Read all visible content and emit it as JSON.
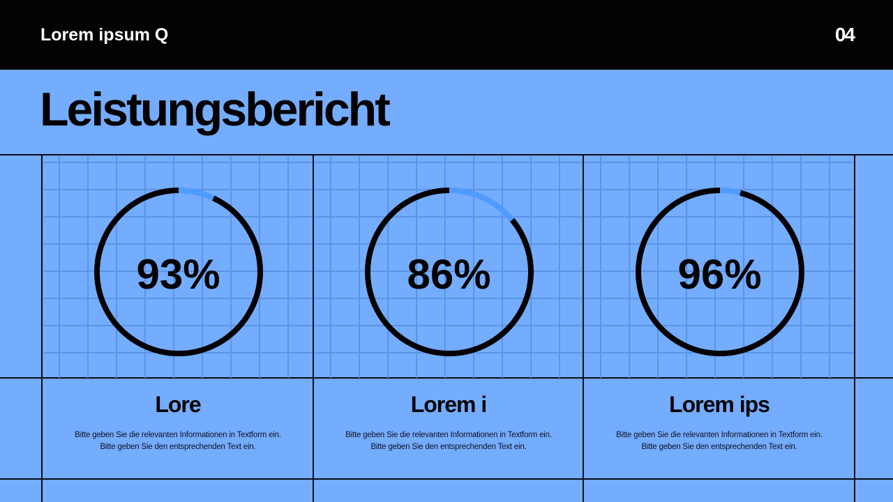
{
  "header": {
    "brand": "Lorem ipsum Q",
    "page_number": "04"
  },
  "title": "Leistungsbericht",
  "colors": {
    "background": "#74acfe",
    "grid": "#5b93e6",
    "ring": "#050203",
    "ring_remainder": "#4f9bff"
  },
  "cards": [
    {
      "value": 93,
      "label": "93%",
      "heading": "Lore",
      "line1": "Bitte geben Sie die relevanten Informationen in Textform ein.",
      "line2": "Bitte geben Sie den entsprechenden Text ein."
    },
    {
      "value": 86,
      "label": "86%",
      "heading": "Lorem i",
      "line1": "Bitte geben Sie die relevanten Informationen in Textform ein.",
      "line2": "Bitte geben Sie den entsprechenden Text ein."
    },
    {
      "value": 96,
      "label": "96%",
      "heading": "Lorem ips",
      "line1": "Bitte geben Sie die relevanten Informationen in Textform ein.",
      "line2": "Bitte geben Sie den entsprechenden Text ein."
    }
  ]
}
